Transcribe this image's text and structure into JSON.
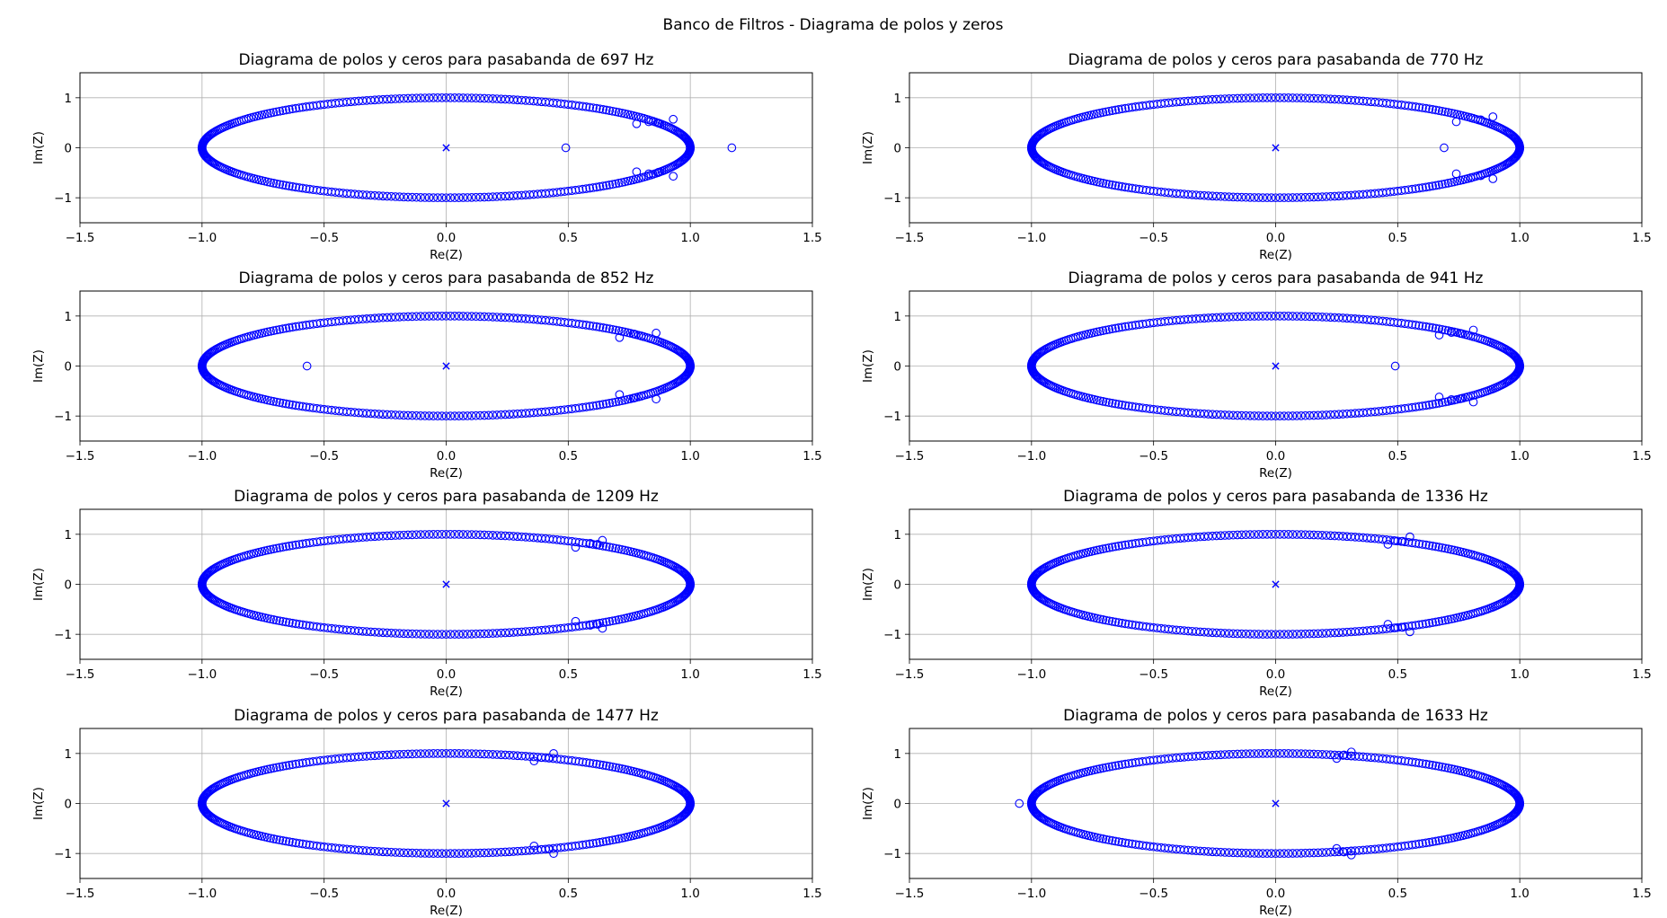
{
  "figure": {
    "suptitle": "Banco de Filtros - Diagrama de polos y zeros",
    "colors": {
      "markers": "#0000ff",
      "grid": "#b0b0b0",
      "axes": "#000000",
      "background": "#ffffff"
    }
  },
  "chart_data": [
    {
      "type": "scatter",
      "title": "Diagrama de polos y ceros para pasabanda de 697 Hz",
      "xlabel": "Re(Z)",
      "ylabel": "Im(Z)",
      "xlim": [
        -1.5,
        1.5
      ],
      "ylim": [
        -1.5,
        1.5
      ],
      "xticks": [
        "−1.5",
        "−1.0",
        "−0.5",
        "0.0",
        "0.5",
        "1.0",
        "1.5"
      ],
      "yticks": [
        "−1",
        "0",
        "1"
      ],
      "grid": true,
      "zeros_unit_circle_count": 360,
      "zeros_extra": [
        [
          0.49,
          0
        ],
        [
          1.17,
          0
        ],
        [
          0.78,
          0.48
        ],
        [
          0.78,
          -0.48
        ],
        [
          0.83,
          0.52
        ],
        [
          0.83,
          -0.52
        ],
        [
          0.87,
          0.49
        ],
        [
          0.87,
          -0.49
        ],
        [
          0.93,
          0.57
        ],
        [
          0.93,
          -0.57
        ]
      ],
      "poles": [
        [
          0,
          0
        ]
      ]
    },
    {
      "type": "scatter",
      "title": "Diagrama de polos y ceros para pasabanda de 770 Hz",
      "xlabel": "Re(Z)",
      "ylabel": "Im(Z)",
      "xlim": [
        -1.5,
        1.5
      ],
      "ylim": [
        -1.5,
        1.5
      ],
      "xticks": [
        "−1.5",
        "−1.0",
        "−0.5",
        "0.0",
        "0.5",
        "1.0",
        "1.5"
      ],
      "yticks": [
        "−1",
        "0",
        "1"
      ],
      "grid": true,
      "zeros_unit_circle_count": 360,
      "zeros_extra": [
        [
          0.69,
          0
        ],
        [
          0.74,
          0.52
        ],
        [
          0.74,
          -0.52
        ],
        [
          0.8,
          0.6
        ],
        [
          0.8,
          -0.6
        ],
        [
          0.84,
          0.56
        ],
        [
          0.84,
          -0.56
        ],
        [
          0.89,
          0.62
        ],
        [
          0.89,
          -0.62
        ]
      ],
      "poles": [
        [
          0,
          0
        ]
      ]
    },
    {
      "type": "scatter",
      "title": "Diagrama de polos y ceros para pasabanda de 852 Hz",
      "xlabel": "Re(Z)",
      "ylabel": "Im(Z)",
      "xlim": [
        -1.5,
        1.5
      ],
      "ylim": [
        -1.5,
        1.5
      ],
      "xticks": [
        "−1.5",
        "−1.0",
        "−0.5",
        "0.0",
        "0.5",
        "1.0",
        "1.5"
      ],
      "yticks": [
        "−1",
        "0",
        "1"
      ],
      "grid": true,
      "zeros_unit_circle_count": 360,
      "zeros_extra": [
        [
          -0.57,
          0
        ],
        [
          0.71,
          0.57
        ],
        [
          0.71,
          -0.57
        ],
        [
          0.77,
          0.64
        ],
        [
          0.77,
          -0.64
        ],
        [
          0.8,
          0.6
        ],
        [
          0.8,
          -0.6
        ],
        [
          0.86,
          0.66
        ],
        [
          0.86,
          -0.66
        ]
      ],
      "poles": [
        [
          0,
          0
        ]
      ]
    },
    {
      "type": "scatter",
      "title": "Diagrama de polos y ceros para pasabanda de 941 Hz",
      "xlabel": "Re(Z)",
      "ylabel": "Im(Z)",
      "xlim": [
        -1.5,
        1.5
      ],
      "ylim": [
        -1.5,
        1.5
      ],
      "xticks": [
        "−1.5",
        "−1.0",
        "−0.5",
        "0.0",
        "0.5",
        "1.0",
        "1.5"
      ],
      "yticks": [
        "−1",
        "0",
        "1"
      ],
      "grid": true,
      "zeros_unit_circle_count": 360,
      "zeros_extra": [
        [
          0.49,
          0
        ],
        [
          0.67,
          0.62
        ],
        [
          0.67,
          -0.62
        ],
        [
          0.72,
          0.67
        ],
        [
          0.72,
          -0.67
        ],
        [
          0.76,
          0.65
        ],
        [
          0.76,
          -0.65
        ],
        [
          0.81,
          0.72
        ],
        [
          0.81,
          -0.72
        ]
      ],
      "poles": [
        [
          0,
          0
        ]
      ]
    },
    {
      "type": "scatter",
      "title": "Diagrama de polos y ceros para pasabanda de 1209 Hz",
      "xlabel": "Re(Z)",
      "ylabel": "Im(Z)",
      "xlim": [
        -1.5,
        1.5
      ],
      "ylim": [
        -1.5,
        1.5
      ],
      "xticks": [
        "−1.5",
        "−1.0",
        "−0.5",
        "0.0",
        "0.5",
        "1.0",
        "1.5"
      ],
      "yticks": [
        "−1",
        "0",
        "1"
      ],
      "grid": true,
      "zeros_unit_circle_count": 360,
      "zeros_extra": [
        [
          0.53,
          0.74
        ],
        [
          0.53,
          -0.74
        ],
        [
          0.59,
          0.82
        ],
        [
          0.59,
          -0.82
        ],
        [
          0.62,
          0.8
        ],
        [
          0.62,
          -0.8
        ],
        [
          0.64,
          0.88
        ],
        [
          0.64,
          -0.88
        ]
      ],
      "poles": [
        [
          0,
          0
        ]
      ]
    },
    {
      "type": "scatter",
      "title": "Diagrama de polos y ceros para pasabanda de 1336 Hz",
      "xlabel": "Re(Z)",
      "ylabel": "Im(Z)",
      "xlim": [
        -1.5,
        1.5
      ],
      "ylim": [
        -1.5,
        1.5
      ],
      "xticks": [
        "−1.5",
        "−1.0",
        "−0.5",
        "0.0",
        "0.5",
        "1.0",
        "1.5"
      ],
      "yticks": [
        "−1",
        "0",
        "1"
      ],
      "grid": true,
      "zeros_unit_circle_count": 360,
      "zeros_extra": [
        [
          0.46,
          0.8
        ],
        [
          0.46,
          -0.8
        ],
        [
          0.49,
          0.87
        ],
        [
          0.49,
          -0.87
        ],
        [
          0.52,
          0.86
        ],
        [
          0.52,
          -0.86
        ],
        [
          0.55,
          0.95
        ],
        [
          0.55,
          -0.95
        ]
      ],
      "poles": [
        [
          0,
          0
        ]
      ]
    },
    {
      "type": "scatter",
      "title": "Diagrama de polos y ceros para pasabanda de 1477 Hz",
      "xlabel": "Re(Z)",
      "ylabel": "Im(Z)",
      "xlim": [
        -1.5,
        1.5
      ],
      "ylim": [
        -1.5,
        1.5
      ],
      "xticks": [
        "−1.5",
        "−1.0",
        "−0.5",
        "0.0",
        "0.5",
        "1.0",
        "1.5"
      ],
      "yticks": [
        "−1",
        "0",
        "1"
      ],
      "grid": true,
      "zeros_unit_circle_count": 360,
      "zeros_extra": [
        [
          0.36,
          0.85
        ],
        [
          0.36,
          -0.85
        ],
        [
          0.39,
          0.92
        ],
        [
          0.39,
          -0.92
        ],
        [
          0.42,
          0.91
        ],
        [
          0.42,
          -0.91
        ],
        [
          0.44,
          1.0
        ],
        [
          0.44,
          -1.0
        ]
      ],
      "poles": [
        [
          0,
          0
        ]
      ]
    },
    {
      "type": "scatter",
      "title": "Diagrama de polos y ceros para pasabanda de 1633 Hz",
      "xlabel": "Re(Z)",
      "ylabel": "Im(Z)",
      "xlim": [
        -1.5,
        1.5
      ],
      "ylim": [
        -1.5,
        1.5
      ],
      "xticks": [
        "−1.5",
        "−1.0",
        "−0.5",
        "0.0",
        "0.5",
        "1.0",
        "1.5"
      ],
      "yticks": [
        "−1",
        "0",
        "1"
      ],
      "grid": true,
      "zeros_unit_circle_count": 360,
      "zeros_extra": [
        [
          -1.05,
          0
        ],
        [
          0.25,
          0.9
        ],
        [
          0.25,
          -0.9
        ],
        [
          0.28,
          0.97
        ],
        [
          0.28,
          -0.97
        ],
        [
          0.31,
          0.95
        ],
        [
          0.31,
          -0.95
        ],
        [
          0.31,
          1.03
        ],
        [
          0.31,
          -1.03
        ]
      ],
      "poles": [
        [
          0,
          0
        ]
      ]
    }
  ]
}
